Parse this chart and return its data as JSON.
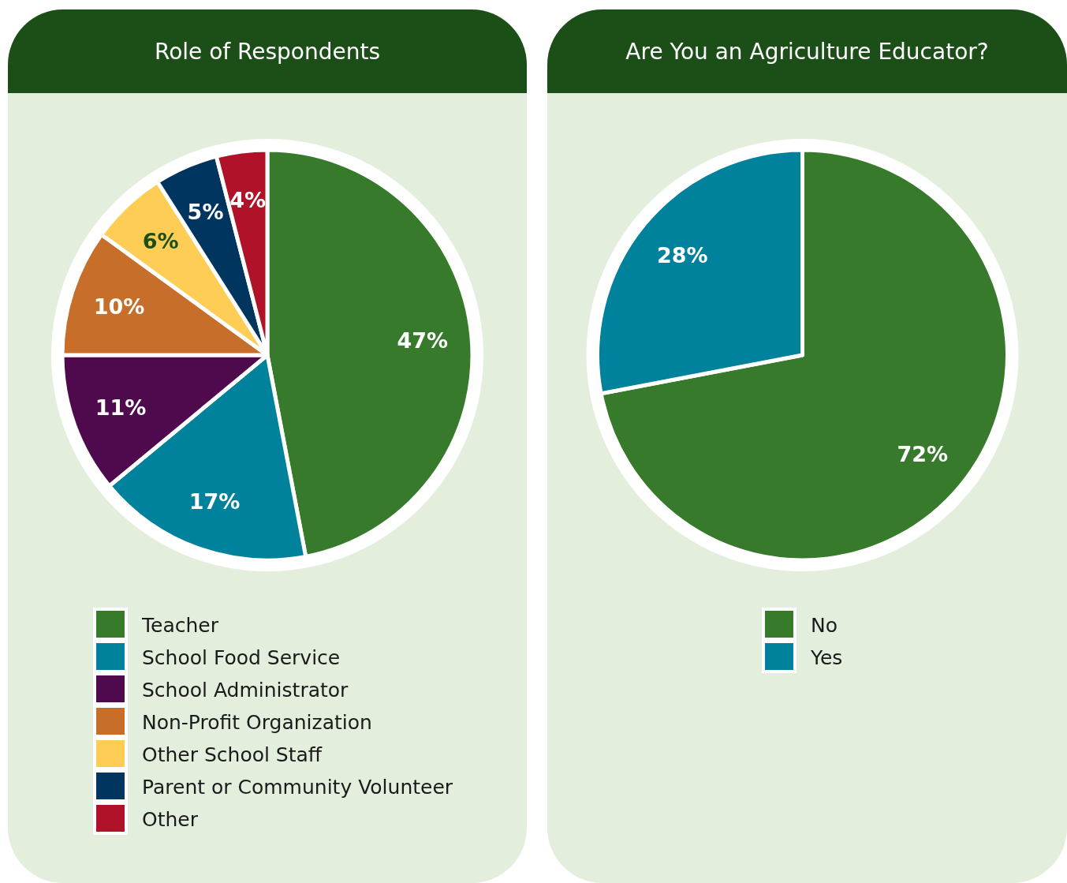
{
  "chart_data": [
    {
      "type": "pie",
      "title": "Role of Respondents",
      "categories": [
        "Teacher",
        "School Food Service",
        "School Administrator",
        "Non-Profit Organization",
        "Other School Staff",
        "Parent or Community Volunteer",
        "Other"
      ],
      "values": [
        47,
        17,
        11,
        10,
        6,
        5,
        4
      ],
      "colors": [
        "#377a2c",
        "#00819c",
        "#4f0a4e",
        "#c66e2a",
        "#fecd55",
        "#00355f",
        "#b0122a"
      ],
      "value_labels": [
        "47%",
        "17%",
        "11%",
        "10%",
        "6%",
        "5%",
        "4%"
      ],
      "legend": "bottom"
    },
    {
      "type": "pie",
      "title": "Are You an Agriculture Educator?",
      "categories": [
        "No",
        "Yes"
      ],
      "values": [
        72,
        28
      ],
      "colors": [
        "#377a2c",
        "#00819c"
      ],
      "value_labels": [
        "72%",
        "28%"
      ],
      "legend": "bottom"
    }
  ]
}
